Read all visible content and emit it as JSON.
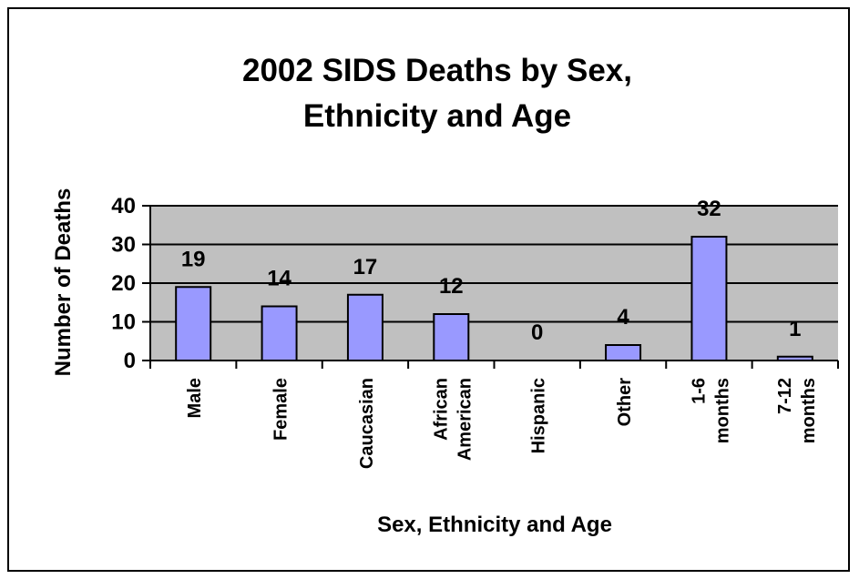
{
  "chart_data": {
    "type": "bar",
    "title_lines": [
      "2002 SIDS Deaths by Sex,",
      "Ethnicity and Age"
    ],
    "xlabel": "Sex, Ethnicity and Age",
    "ylabel": "Number of Deaths",
    "categories": [
      [
        "Male"
      ],
      [
        "Female"
      ],
      [
        "Caucasian"
      ],
      [
        "African",
        "American"
      ],
      [
        "Hispanic"
      ],
      [
        "Other"
      ],
      [
        "1-6",
        "months"
      ],
      [
        "7-12",
        "months"
      ]
    ],
    "values": [
      19,
      14,
      17,
      12,
      0,
      4,
      32,
      1
    ],
    "data_labels": [
      "19",
      "14",
      "17",
      "12",
      "0",
      "4",
      "32",
      "1"
    ],
    "ylim": [
      0,
      40
    ],
    "yticks": [
      0,
      10,
      20,
      30,
      40
    ],
    "grid": true,
    "legend": "none",
    "colors": {
      "bar_fill": "#9999ff",
      "bar_stroke": "#000000",
      "plot_background": "#c0c0c0",
      "grid": "#000000"
    }
  }
}
